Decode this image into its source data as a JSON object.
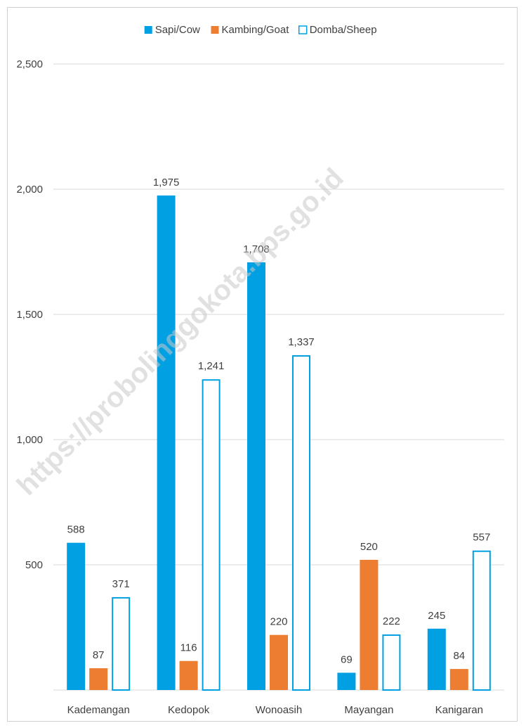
{
  "chart_data": {
    "type": "bar",
    "categories": [
      "Kademangan",
      "Kedopok",
      "Wonoasih",
      "Mayangan",
      "Kanigaran"
    ],
    "series": [
      {
        "name": "Sapi/Cow",
        "values": [
          588,
          1975,
          1708,
          69,
          245
        ],
        "color": "#00a0e3",
        "style": "filled"
      },
      {
        "name": "Kambing/Goat",
        "values": [
          87,
          116,
          220,
          520,
          84
        ],
        "color": "#ed7d31",
        "style": "filled"
      },
      {
        "name": "Domba/Sheep",
        "values": [
          371,
          1241,
          1337,
          222,
          557
        ],
        "color": "#00a0e3",
        "style": "outline"
      }
    ],
    "yticks": [
      "500",
      "1,000",
      "1,500",
      "2,000",
      "2,500"
    ],
    "ytick_values": [
      500,
      1000,
      1500,
      2000,
      2500
    ],
    "ylim": [
      0,
      2500
    ],
    "grid": true,
    "legend_position": "top-center",
    "gridline_color": "#d9d9d9",
    "label_color": "#404040"
  },
  "watermark": "https://probolinggokota.bps.go.id"
}
